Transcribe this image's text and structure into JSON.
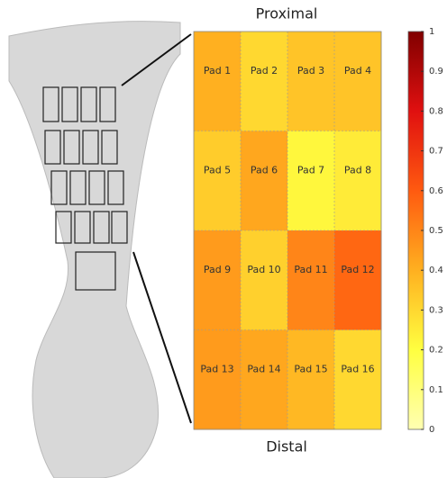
{
  "chart_data": {
    "type": "heatmap",
    "title": "Proximal",
    "xlabel": "Distal",
    "labels": [
      [
        "Pad 1",
        "Pad 2",
        "Pad 3",
        "Pad 4"
      ],
      [
        "Pad 5",
        "Pad 6",
        "Pad 7",
        "Pad 8"
      ],
      [
        "Pad 9",
        "Pad 10",
        "Pad 11",
        "Pad 12"
      ],
      [
        "Pad 13",
        "Pad 14",
        "Pad 15",
        "Pad 16"
      ]
    ],
    "values": [
      [
        0.4,
        0.3,
        0.35,
        0.35
      ],
      [
        0.33,
        0.42,
        0.22,
        0.25
      ],
      [
        0.45,
        0.32,
        0.5,
        0.57
      ],
      [
        0.45,
        0.42,
        0.38,
        0.3
      ]
    ],
    "colormap": [
      "#ffffb2",
      "#ffff40",
      "#ffb020",
      "#ff5a10",
      "#e01010",
      "#800000"
    ],
    "clim": [
      0,
      1
    ],
    "cticks": [
      0,
      0.1,
      0.2,
      0.3,
      0.4,
      0.5,
      0.6,
      0.7,
      0.8,
      0.9,
      1
    ]
  }
}
